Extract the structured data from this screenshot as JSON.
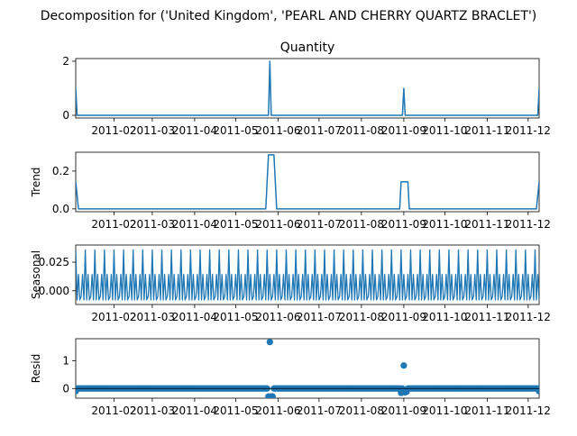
{
  "figure": {
    "suptitle": "Decomposition for ('United Kingdom', 'PEARL AND CHERRY QUARTZ BRACLET')"
  },
  "colors": {
    "series": "#1f77b4",
    "axis": "#000000",
    "background": "#ffffff"
  },
  "chart_data": [
    {
      "type": "line",
      "title": "Quantity",
      "ylabel": "",
      "x_ticks": [
        "2011-02",
        "2011-03",
        "2011-04",
        "2011-05",
        "2011-06",
        "2011-07",
        "2011-08",
        "2011-09",
        "2011-10",
        "2011-11",
        "2011-12"
      ],
      "y_ticks": [
        "0",
        "2"
      ],
      "ylim": [
        -0.1,
        2.1
      ],
      "x_range": [
        "2011-01-04",
        "2011-12-09"
      ],
      "peaks": [
        {
          "x": "2011-01-04",
          "y": 1
        },
        {
          "x": "2011-05-26",
          "y": 2
        },
        {
          "x": "2011-09-01",
          "y": 1
        },
        {
          "x": "2011-12-09",
          "y": 1
        }
      ],
      "baseline": 0
    },
    {
      "type": "line",
      "title": "",
      "ylabel": "Trend",
      "x_ticks": [
        "2011-02",
        "2011-03",
        "2011-04",
        "2011-05",
        "2011-06",
        "2011-07",
        "2011-08",
        "2011-09",
        "2011-10",
        "2011-11",
        "2011-12"
      ],
      "y_ticks": [
        "0.0",
        "0.2"
      ],
      "ylim": [
        -0.015,
        0.3
      ],
      "x_range": [
        "2011-01-04",
        "2011-12-09"
      ],
      "points": [
        {
          "x": "2011-01-04",
          "y": 0.143
        },
        {
          "x": "2011-01-06",
          "y": 0
        },
        {
          "x": "2011-05-23",
          "y": 0
        },
        {
          "x": "2011-05-25",
          "y": 0.286
        },
        {
          "x": "2011-05-29",
          "y": 0.286
        },
        {
          "x": "2011-05-31",
          "y": 0
        },
        {
          "x": "2011-08-29",
          "y": 0
        },
        {
          "x": "2011-08-30",
          "y": 0.143
        },
        {
          "x": "2011-09-04",
          "y": 0.143
        },
        {
          "x": "2011-09-05",
          "y": 0
        },
        {
          "x": "2011-12-07",
          "y": 0
        },
        {
          "x": "2011-12-09",
          "y": 0.143
        }
      ]
    },
    {
      "type": "line",
      "title": "",
      "ylabel": "Seasonal",
      "x_ticks": [
        "2011-02",
        "2011-03",
        "2011-04",
        "2011-05",
        "2011-06",
        "2011-07",
        "2011-08",
        "2011-09",
        "2011-10",
        "2011-11",
        "2011-12"
      ],
      "y_ticks": [
        "0.000",
        "0.025"
      ],
      "ylim": [
        -0.012,
        0.04
      ],
      "x_range": [
        "2011-01-04",
        "2011-12-09"
      ],
      "weekly_pattern": [
        0.0357,
        -0.008,
        0.0143,
        -0.008,
        -0.005,
        0.0143,
        -0.008
      ]
    },
    {
      "type": "scatter",
      "title": "",
      "ylabel": "Resid",
      "x_ticks": [
        "2011-02",
        "2011-03",
        "2011-04",
        "2011-05",
        "2011-06",
        "2011-07",
        "2011-08",
        "2011-09",
        "2011-10",
        "2011-11",
        "2011-12"
      ],
      "y_ticks": [
        "0",
        "1"
      ],
      "ylim": [
        -0.35,
        1.8
      ],
      "x_range": [
        "2011-01-04",
        "2011-12-09"
      ],
      "outliers": [
        {
          "x": "2011-01-04",
          "y": -0.1
        },
        {
          "x": "2011-05-25",
          "y": -0.29
        },
        {
          "x": "2011-05-26",
          "y": 1.68
        },
        {
          "x": "2011-05-27",
          "y": -0.29
        },
        {
          "x": "2011-05-28",
          "y": -0.29
        },
        {
          "x": "2011-08-30",
          "y": -0.16
        },
        {
          "x": "2011-09-01",
          "y": 0.83
        },
        {
          "x": "2011-09-02",
          "y": -0.14
        },
        {
          "x": "2011-09-03",
          "y": -0.12
        },
        {
          "x": "2011-12-09",
          "y": -0.1
        }
      ]
    }
  ]
}
